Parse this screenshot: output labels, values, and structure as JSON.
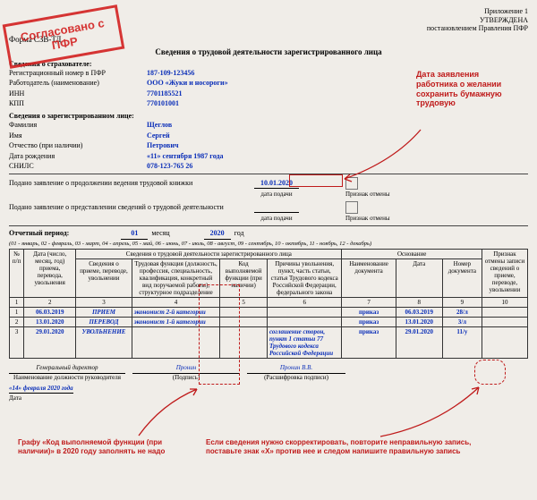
{
  "header": {
    "annex": "Приложение 1",
    "approved": "УТВЕРЖДЕНА",
    "by": "постановлением Правления ПФР"
  },
  "form_code": "Форма СЗВ-ТД",
  "title": "Сведения о трудовой деятельности зарегистрированного лица",
  "stamp_text": "Согласовано с ПФР",
  "insurer": {
    "section": "Сведения о страхователе:",
    "reg_no_label": "Регистрационный номер в ПФР",
    "reg_no": "187-109-123456",
    "employer_label": "Работодатель (наименование)",
    "employer": "ООО «Жуки и носороги»",
    "inn_label": "ИНН",
    "inn": "7701185521",
    "kpp_label": "КПП",
    "kpp": "770101001"
  },
  "person": {
    "section": "Сведения о зарегистрированном лице:",
    "surname_label": "Фамилия",
    "surname": "Щеглов",
    "name_label": "Имя",
    "name": "Сергей",
    "patronymic_label": "Отчество (при наличии)",
    "patronymic": "Петрович",
    "dob_label": "Дата рождения",
    "dob": "«11»  сентября 1987 года",
    "snils_label": "СНИЛС",
    "snils": "078-123-765 26"
  },
  "statements": {
    "s1": "Подано заявление о продолжении ведения трудовой книжки",
    "s1_date": "10.01.2020",
    "s2": "Подано заявление о представлении сведений о трудовой деятельности",
    "date_label": "дата подачи",
    "cancel_label": "Признак отмены"
  },
  "period": {
    "label": "Отчетный период:",
    "month": "01",
    "month_lbl": "месяц",
    "year": "2020",
    "year_lbl": "год",
    "legend": "(01 - январь, 02 - февраль, 03 - март, 04 - апрель, 05 - май, 06 - июнь, 07 - июль, 08 - август, 09 - сентябрь, 10 - октябрь, 11 - ноябрь, 12 - декабрь)"
  },
  "table": {
    "headers": {
      "col1": "№ п/п",
      "col2": "Дата (число, месяц, год) приема, перевода, увольнения",
      "col3_group": "Сведения о трудовой деятельности зарегистрированного лица",
      "col3": "Сведения о приеме, переводе, увольнении",
      "col4": "Трудовая функция (должность, профессия, специальность, квалификация, конкретный вид поручаемой работы), структурное подразделение",
      "col5": "Код выполняемой функции (при наличии)",
      "col6": "Причины увольнения, пункт, часть статьи, статья Трудового кодекса Российской Федерации, федерального закона",
      "col7_group": "Основание",
      "col7": "Наименование документа",
      "col8": "Дата",
      "col9": "Номер документа",
      "col10": "Признак отмены записи сведений о приеме, переводе, увольнении"
    },
    "rows": [
      {
        "n": "1",
        "date": "06.03.2019",
        "act": "ПРИЕМ",
        "func": "экономист 2-й категории",
        "code": "",
        "reason": "",
        "doc": "приказ",
        "ddate": "06.03.2019",
        "dnum": "28/л",
        "cancel": ""
      },
      {
        "n": "2",
        "date": "13.01.2020",
        "act": "ПЕРЕВОД",
        "func": "экономист 1-й категории",
        "code": "",
        "reason": "",
        "doc": "приказ",
        "ddate": "13.01.2020",
        "dnum": "3/л",
        "cancel": ""
      },
      {
        "n": "3",
        "date": "29.01.2020",
        "act": "УВОЛЬНЕНИЕ",
        "func": "",
        "code": "",
        "reason": "соглашение сторон, пункт 1 статьи 77 Трудового кодекса Российской Федерации",
        "doc": "приказ",
        "ddate": "29.01.2020",
        "dnum": "11/у",
        "cancel": ""
      }
    ]
  },
  "footer": {
    "position": "Генеральный директор",
    "pos_caption": "Наименование должности руководителя",
    "date": "«14» февраля 2020 года",
    "date_caption": "Дата",
    "sig_caption": "(Подпись)",
    "sig_name": "Пронин В.В.",
    "name_caption": "(Расшифровка подписи)",
    "sig_scribble": "Пpoнин"
  },
  "annotations": {
    "date_note": "Дата заявления работника о желании сохранить бумажную трудовую",
    "code_note": "Графу «Код выполняемой функции (при наличии)» в 2020 году заполнять не надо",
    "correct_note": "Если сведения нужно скорректировать, повторите неправильную запись, поставьте знак «Х» против нее и следом напишите правильную запись"
  },
  "colors": {
    "value": "#0a2eb8",
    "red": "#bf1a1a",
    "border": "#333333",
    "bg": "#f0ede8"
  }
}
